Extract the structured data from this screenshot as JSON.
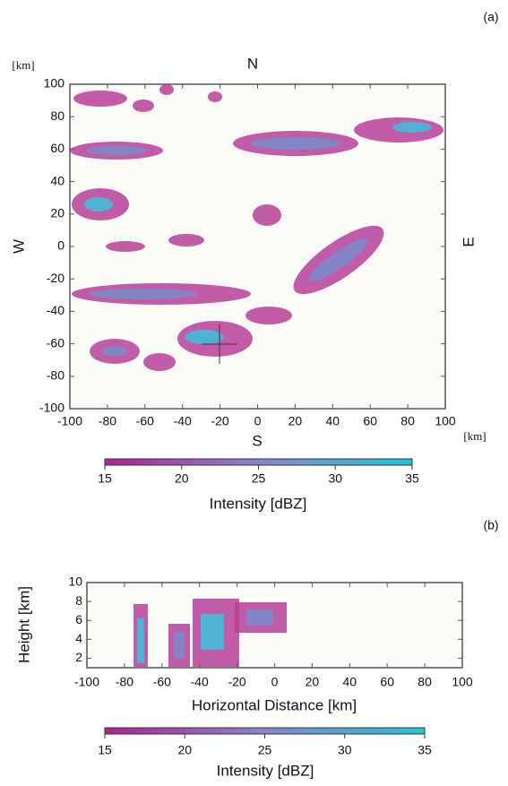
{
  "chart_data": [
    {
      "type": "heatmap",
      "panel": "(a)",
      "unit_label": "[km]",
      "directions": {
        "north": "N",
        "south": "S",
        "west": "W",
        "east": "E"
      },
      "xlim": [
        -100,
        100
      ],
      "ylim": [
        -100,
        100
      ],
      "xticks": [
        -100,
        -80,
        -60,
        -40,
        -20,
        0,
        20,
        40,
        60,
        80,
        100
      ],
      "yticks": [
        -100,
        -80,
        -60,
        -40,
        -20,
        0,
        20,
        40,
        60,
        80,
        100
      ],
      "colorbar": {
        "label": "Intensity [dBZ]",
        "lim": [
          15,
          35
        ],
        "ticks": [
          15,
          20,
          25,
          30,
          35
        ],
        "colors": [
          "#b0228f",
          "#8a86c4",
          "#22c4d8"
        ]
      }
    },
    {
      "type": "heatmap",
      "panel": "(b)",
      "xlabel": "Horizontal Distance [km]",
      "ylabel": "Height [km]",
      "xlim": [
        -100,
        100
      ],
      "ylim": [
        1,
        10
      ],
      "xticks": [
        -100,
        -80,
        -60,
        -40,
        -20,
        0,
        20,
        40,
        60,
        80,
        100
      ],
      "yticks": [
        2,
        4,
        6,
        8,
        10
      ],
      "colorbar": {
        "label": "Intensity [dBZ]",
        "lim": [
          15,
          35
        ],
        "ticks": [
          15,
          20,
          25,
          30,
          35
        ],
        "colors": [
          "#b0228f",
          "#8a86c4",
          "#22c4d8"
        ]
      }
    }
  ]
}
